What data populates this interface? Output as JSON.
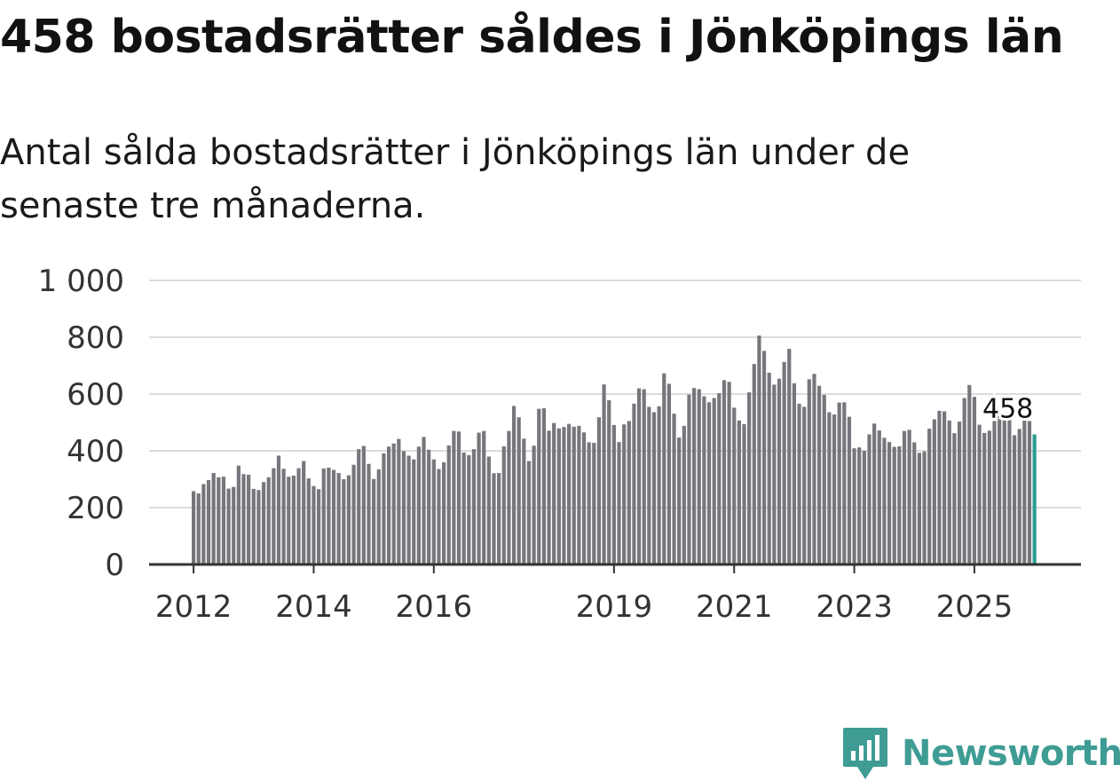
{
  "header": {
    "title": "458 bostadsrätter såldes i Jönköpings län",
    "subtitle": "Antal sålda bostadsrätter i Jönköpings län under de senaste tre månaderna."
  },
  "brand": {
    "name": "Newsworthy",
    "color": "#3e9c94",
    "icon": "newsworthy-chart-logo-icon"
  },
  "colors": {
    "bar": "#77767c",
    "highlight": "#2a9d8f",
    "grid": "#dcdcdc",
    "axis": "#333333"
  },
  "chart_data": {
    "type": "bar",
    "title": "458 bostadsrätter såldes i Jönköpings län",
    "xlabel": "",
    "ylabel": "",
    "ylim": [
      0,
      1000
    ],
    "yticks": [
      0,
      200,
      400,
      600,
      800,
      1000
    ],
    "ytick_labels": [
      "0",
      "200",
      "400",
      "600",
      "800",
      "1 000"
    ],
    "xticks": [
      2012,
      2014,
      2016,
      2019,
      2021,
      2023,
      2025
    ],
    "xtick_labels": [
      "2012",
      "2014",
      "2016",
      "2019",
      "2021",
      "2023",
      "2025"
    ],
    "start": "2012-01",
    "frequency": "monthly",
    "highlight_label": "458",
    "values": [
      258,
      250,
      283,
      297,
      322,
      307,
      309,
      267,
      273,
      348,
      318,
      316,
      266,
      262,
      290,
      307,
      339,
      383,
      337,
      309,
      313,
      339,
      364,
      303,
      276,
      265,
      338,
      341,
      333,
      322,
      300,
      314,
      351,
      406,
      417,
      354,
      301,
      335,
      391,
      415,
      426,
      442,
      399,
      383,
      370,
      415,
      449,
      404,
      370,
      336,
      360,
      419,
      470,
      468,
      394,
      385,
      406,
      464,
      470,
      380,
      321,
      322,
      416,
      470,
      558,
      518,
      443,
      364,
      418,
      548,
      550,
      471,
      498,
      479,
      484,
      495,
      485,
      488,
      465,
      430,
      428,
      518,
      634,
      578,
      491,
      431,
      493,
      505,
      566,
      620,
      617,
      555,
      536,
      557,
      673,
      636,
      531,
      447,
      488,
      598,
      621,
      617,
      592,
      571,
      586,
      603,
      649,
      643,
      552,
      507,
      494,
      606,
      706,
      806,
      752,
      675,
      633,
      654,
      713,
      759,
      638,
      566,
      555,
      652,
      671,
      629,
      597,
      536,
      528,
      570,
      571,
      520,
      409,
      412,
      400,
      458,
      496,
      472,
      446,
      431,
      414,
      416,
      470,
      474,
      430,
      393,
      398,
      478,
      511,
      541,
      539,
      507,
      462,
      503,
      586,
      632,
      590,
      492,
      463,
      471,
      505,
      545,
      529,
      518,
      455,
      477,
      506,
      505,
      458
    ]
  }
}
